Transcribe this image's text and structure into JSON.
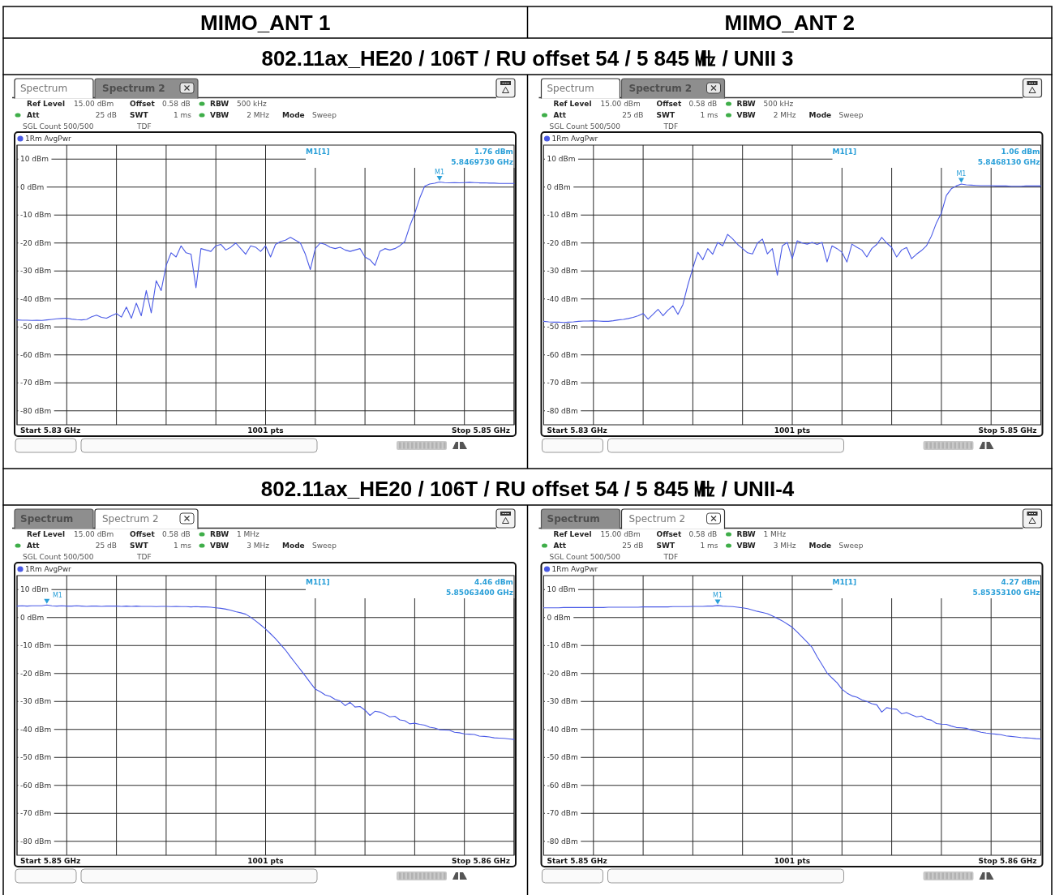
{
  "chart_data": [
    {
      "type": "other",
      "annotations": [
        "MIMO_ANT 1",
        "MIMO_ANT 2"
      ]
    },
    {
      "type": "other",
      "title": "802.11ax_HE20 / 106T / RU offset 54 / 5 845 ㎒ / UNII 3"
    },
    {
      "type": "line",
      "categories": [
        null,
        null,
        null,
        null,
        null,
        null,
        null,
        null,
        null,
        null,
        null,
        null,
        null,
        null,
        null,
        null,
        null,
        null,
        null,
        null,
        null,
        null,
        null,
        null,
        null,
        null,
        null,
        null,
        null,
        null,
        null,
        null,
        null,
        null,
        null,
        null,
        null,
        null,
        null,
        null,
        null,
        null,
        null,
        null,
        null,
        null,
        null,
        null,
        null,
        null,
        null,
        null,
        null,
        null,
        null,
        null,
        null,
        null,
        null,
        null,
        null,
        null,
        null,
        null,
        null,
        null,
        null,
        null,
        null,
        null,
        null,
        null,
        null,
        null,
        null,
        null,
        null,
        null,
        null,
        null,
        null,
        null,
        null,
        null,
        null,
        null,
        null,
        null,
        null,
        null,
        null,
        null,
        null,
        null,
        null,
        null,
        null,
        null,
        null,
        null,
        null
      ],
      "series": [
        {
          "name": "1Rm AvgPwr",
          "color": "#4a5ae6",
          "values": [
            -47.5,
            -47.6,
            -47.6,
            -47.7,
            -47.6,
            -47.7,
            -47.5,
            -47.3,
            -47.1,
            -47,
            -46.9,
            -47.2,
            -47.4,
            -47.5,
            -47.3,
            -46.4,
            -45.8,
            -46.6,
            -46.9,
            -46,
            -45.2,
            -46.5,
            -42.9,
            -46.9,
            -41.5,
            -46,
            -37,
            -45,
            -33.5,
            -37,
            -28,
            -23.5,
            -25,
            -21,
            -23.5,
            -24,
            -36,
            -22,
            -22.5,
            -23,
            -21,
            -20.5,
            -22.5,
            -21.5,
            -20,
            -22,
            -24,
            -21,
            -21.5,
            -23,
            -21,
            -25,
            -20.5,
            -19.5,
            -19,
            -18,
            -19,
            -20,
            -24,
            -29.5,
            -22,
            -20,
            -20.5,
            -21.5,
            -22,
            -21.5,
            -22.5,
            -23,
            -22.5,
            -22,
            -25,
            -26,
            -28,
            -23,
            -22,
            -22.5,
            -22,
            -21,
            -19.5,
            -14,
            -9.5,
            -4,
            0.3,
            1.1,
            1.4,
            1.8,
            1.6,
            1.5,
            1.6,
            1.5,
            1.6,
            1.7,
            1.6,
            1.5,
            1.5,
            1.4,
            1.4,
            1.3,
            1.3,
            1.3,
            1.3
          ]
        }
      ],
      "xlabel": "1001 pts",
      "ylim": [
        -85,
        15
      ],
      "yticks": [
        {
          "value": 10,
          "label": "10 dBm"
        },
        {
          "value": 0,
          "label": "0 dBm"
        },
        {
          "value": -10,
          "label": "-10 dBm"
        },
        {
          "value": -20,
          "label": "-20 dBm"
        },
        {
          "value": -30,
          "label": "-30 dBm"
        },
        {
          "value": -40,
          "label": "-40 dBm"
        },
        {
          "value": -50,
          "label": "-50 dBm"
        },
        {
          "value": -60,
          "label": "-60 dBm"
        },
        {
          "value": -70,
          "label": "-70 dBm"
        },
        {
          "value": -80,
          "label": "-80 dBm"
        }
      ],
      "grid": true,
      "legend": "top left",
      "line_style": "solid",
      "annotations": [
        "Spectrum",
        "Spectrum 2",
        "Ref Level",
        "15.00 dBm",
        "Offset",
        "0.58 dB",
        "RBW",
        "500 kHz",
        "Att",
        "25 dB",
        "SWT",
        "1 ms",
        "VBW",
        "2 MHz",
        "Mode",
        "Sweep",
        "SGL Count 500/500",
        "TDF",
        "M1[1]",
        "1.76 dBm",
        "5.8469730 GHz",
        "Start 5.83 GHz",
        "Stop 5.85 GHz",
        "M1"
      ]
    },
    {
      "type": "line",
      "categories": [
        null,
        null,
        null,
        null,
        null,
        null,
        null,
        null,
        null,
        null,
        null,
        null,
        null,
        null,
        null,
        null,
        null,
        null,
        null,
        null,
        null,
        null,
        null,
        null,
        null,
        null,
        null,
        null,
        null,
        null,
        null,
        null,
        null,
        null,
        null,
        null,
        null,
        null,
        null,
        null,
        null,
        null,
        null,
        null,
        null,
        null,
        null,
        null,
        null,
        null,
        null,
        null,
        null,
        null,
        null,
        null,
        null,
        null,
        null,
        null,
        null,
        null,
        null,
        null,
        null,
        null,
        null,
        null,
        null,
        null,
        null,
        null,
        null,
        null,
        null,
        null,
        null,
        null,
        null,
        null,
        null,
        null,
        null,
        null,
        null,
        null,
        null,
        null,
        null,
        null,
        null,
        null,
        null,
        null,
        null,
        null,
        null,
        null,
        null,
        null,
        null
      ],
      "series": [
        {
          "name": "1Rm AvgPwr",
          "color": "#4a5ae6",
          "values": [
            -48,
            -48.2,
            -48.3,
            -48.3,
            -48.4,
            -48.3,
            -48.2,
            -48,
            -47.9,
            -47.9,
            -47.8,
            -47.9,
            -48,
            -48,
            -47.8,
            -47.5,
            -47.3,
            -47,
            -46.6,
            -46,
            -45.2,
            -47.2,
            -45.5,
            -43.7,
            -46,
            -44,
            -42.5,
            -45.5,
            -42,
            -35,
            -29,
            -23.3,
            -26,
            -22,
            -24,
            -19.8,
            -21,
            -16.9,
            -18.5,
            -20.5,
            -22,
            -23.5,
            -23.9,
            -20,
            -18.6,
            -23.9,
            -22,
            -31.5,
            -21,
            -19.8,
            -25.6,
            -19.2,
            -20,
            -20.4,
            -19.8,
            -20.5,
            -19.8,
            -26.8,
            -21,
            -22,
            -23.3,
            -26.8,
            -20.4,
            -21.5,
            -22.5,
            -25,
            -22,
            -20.5,
            -18,
            -20,
            -21.6,
            -25,
            -22.5,
            -21.6,
            -25.6,
            -24,
            -22.7,
            -21,
            -17.5,
            -12.8,
            -9.3,
            -3,
            -0.6,
            0.4,
            1.1,
            0.8,
            0.7,
            0.6,
            0.5,
            0.5,
            0.5,
            0.4,
            0.4,
            0.4,
            0.3,
            0.3,
            0.3,
            0.4,
            0.4,
            0.4,
            0.4
          ]
        }
      ],
      "xlabel": "1001 pts",
      "ylim": [
        -85,
        15
      ],
      "yticks": [
        {
          "value": 10,
          "label": "10 dBm"
        },
        {
          "value": 0,
          "label": "0 dBm"
        },
        {
          "value": -10,
          "label": "-10 dBm"
        },
        {
          "value": -20,
          "label": "-20 dBm"
        },
        {
          "value": -30,
          "label": "-30 dBm"
        },
        {
          "value": -40,
          "label": "-40 dBm"
        },
        {
          "value": -50,
          "label": "-50 dBm"
        },
        {
          "value": -60,
          "label": "-60 dBm"
        },
        {
          "value": -70,
          "label": "-70 dBm"
        },
        {
          "value": -80,
          "label": "-80 dBm"
        }
      ],
      "grid": true,
      "legend": "top left",
      "line_style": "solid",
      "annotations": [
        "Spectrum",
        "Spectrum 2",
        "Ref Level",
        "15.00 dBm",
        "Offset",
        "0.58 dB",
        "RBW",
        "500 kHz",
        "Att",
        "25 dB",
        "SWT",
        "1 ms",
        "VBW",
        "2 MHz",
        "Mode",
        "Sweep",
        "SGL Count 500/500",
        "TDF",
        "M1[1]",
        "1.06 dBm",
        "5.8468130 GHz",
        "Start 5.83 GHz",
        "Stop 5.85 GHz",
        "M1"
      ]
    },
    {
      "type": "other",
      "title": "802.11ax_HE20 / 106T / RU offset 54 / 5 845 ㎒ / UNII-4"
    },
    {
      "type": "line",
      "categories": [
        null,
        null,
        null,
        null,
        null,
        null,
        null,
        null,
        null,
        null,
        null,
        null,
        null,
        null,
        null,
        null,
        null,
        null,
        null,
        null,
        null,
        null,
        null,
        null,
        null,
        null,
        null,
        null,
        null,
        null,
        null,
        null,
        null,
        null,
        null,
        null,
        null,
        null,
        null,
        null,
        null,
        null,
        null,
        null,
        null,
        null,
        null,
        null,
        null,
        null,
        null,
        null,
        null,
        null,
        null,
        null,
        null,
        null,
        null,
        null,
        null,
        null,
        null,
        null,
        null,
        null,
        null,
        null,
        null,
        null,
        null,
        null,
        null,
        null,
        null,
        null,
        null,
        null,
        null,
        null,
        null,
        null,
        null,
        null,
        null,
        null,
        null,
        null,
        null,
        null,
        null,
        null,
        null,
        null,
        null,
        null,
        null,
        null,
        null,
        null,
        null
      ],
      "series": [
        {
          "name": "1Rm AvgPwr",
          "color": "#4a5ae6",
          "values": [
            4.1,
            4.2,
            4.1,
            4.2,
            4.2,
            4.2,
            4.5,
            4.2,
            4.1,
            4.2,
            4.1,
            4.1,
            4.2,
            4.1,
            4,
            4.1,
            4.1,
            4,
            4.1,
            4.1,
            4.1,
            4,
            4.1,
            4,
            4.1,
            4,
            4,
            4,
            3.9,
            4,
            4,
            3.9,
            4,
            3.9,
            3.9,
            3.8,
            3.9,
            3.8,
            3.8,
            3.7,
            3.5,
            3.3,
            3,
            2.6,
            2.1,
            1.7,
            1.2,
            0.1,
            -1.2,
            -2.6,
            -4.1,
            -5.8,
            -7.6,
            -9.6,
            -11.6,
            -14,
            -16.3,
            -18.6,
            -20.9,
            -23.3,
            -25.6,
            -26.5,
            -27.7,
            -28.2,
            -29.3,
            -29.8,
            -31.5,
            -30.3,
            -32,
            -31.8,
            -33.1,
            -35,
            -33.5,
            -33.8,
            -34.6,
            -35.5,
            -35.3,
            -36.6,
            -36.9,
            -38,
            -37.8,
            -38.2,
            -38.5,
            -39.2,
            -39.5,
            -40.1,
            -40.2,
            -40.3,
            -41,
            -41.2,
            -41.6,
            -41.7,
            -41.8,
            -42.4,
            -42.5,
            -42.7,
            -43,
            -43.1,
            -43.2,
            -43.4,
            -43.6
          ]
        }
      ],
      "xlabel": "1001 pts",
      "ylim": [
        -85,
        15
      ],
      "yticks": [
        {
          "value": 10,
          "label": "10 dBm"
        },
        {
          "value": 0,
          "label": "0 dBm"
        },
        {
          "value": -10,
          "label": "-10 dBm"
        },
        {
          "value": -20,
          "label": "-20 dBm"
        },
        {
          "value": -30,
          "label": "-30 dBm"
        },
        {
          "value": -40,
          "label": "-40 dBm"
        },
        {
          "value": -50,
          "label": "-50 dBm"
        },
        {
          "value": -60,
          "label": "-60 dBm"
        },
        {
          "value": -70,
          "label": "-70 dBm"
        },
        {
          "value": -80,
          "label": "-80 dBm"
        }
      ],
      "grid": true,
      "legend": "top left",
      "line_style": "solid",
      "annotations": [
        "Spectrum",
        "Spectrum 2",
        "Ref Level",
        "15.00 dBm",
        "Offset",
        "0.58 dB",
        "RBW",
        "1 MHz",
        "Att",
        "25 dB",
        "SWT",
        "1 ms",
        "VBW",
        "3 MHz",
        "Mode",
        "Sweep",
        "SGL Count 500/500",
        "TDF",
        "M1[1]",
        "4.46 dBm",
        "5.85063400 GHz",
        "Start 5.85 GHz",
        "Stop 5.86 GHz",
        "M1"
      ]
    },
    {
      "type": "line",
      "categories": [
        null,
        null,
        null,
        null,
        null,
        null,
        null,
        null,
        null,
        null,
        null,
        null,
        null,
        null,
        null,
        null,
        null,
        null,
        null,
        null,
        null,
        null,
        null,
        null,
        null,
        null,
        null,
        null,
        null,
        null,
        null,
        null,
        null,
        null,
        null,
        null,
        null,
        null,
        null,
        null,
        null,
        null,
        null,
        null,
        null,
        null,
        null,
        null,
        null,
        null,
        null,
        null,
        null,
        null,
        null,
        null,
        null,
        null,
        null,
        null,
        null,
        null,
        null,
        null,
        null,
        null,
        null,
        null,
        null,
        null,
        null,
        null,
        null,
        null,
        null,
        null,
        null,
        null,
        null,
        null,
        null,
        null,
        null,
        null,
        null,
        null,
        null,
        null,
        null,
        null,
        null,
        null,
        null,
        null,
        null,
        null,
        null,
        null,
        null,
        null,
        null
      ],
      "series": [
        {
          "name": "1Rm AvgPwr",
          "color": "#4a5ae6",
          "values": [
            3.5,
            3.5,
            3.5,
            3.5,
            3.6,
            3.6,
            3.6,
            3.6,
            3.6,
            3.6,
            3.6,
            3.6,
            3.6,
            3.7,
            3.7,
            3.7,
            3.7,
            3.7,
            3.7,
            3.7,
            3.8,
            3.8,
            3.8,
            3.8,
            3.8,
            3.8,
            3.9,
            3.9,
            3.9,
            3.9,
            4,
            4,
            4,
            4.1,
            4.1,
            4.3,
            4.1,
            4,
            3.9,
            3.7,
            3.5,
            3.2,
            2.7,
            2.2,
            1.8,
            1.4,
            0.6,
            -0.3,
            -1.2,
            -2.3,
            -3.5,
            -5.2,
            -7,
            -8.8,
            -10.7,
            -14,
            -16.9,
            -19.8,
            -21.6,
            -23.3,
            -25.6,
            -27,
            -28,
            -28.5,
            -29.4,
            -30,
            -30.8,
            -31.2,
            -33.8,
            -32.2,
            -32.6,
            -32.8,
            -34.4,
            -34,
            -34.8,
            -35.5,
            -35.2,
            -36.3,
            -36.7,
            -37.9,
            -38.1,
            -38.2,
            -38.8,
            -39.3,
            -39.4,
            -39.6,
            -40.2,
            -40.6,
            -41,
            -41.3,
            -41.5,
            -41.7,
            -41.9,
            -42.3,
            -42.5,
            -42.7,
            -42.9,
            -43,
            -43.1,
            -43.3,
            -43.4
          ]
        }
      ],
      "xlabel": "1001 pts",
      "ylim": [
        -85,
        15
      ],
      "yticks": [
        {
          "value": 10,
          "label": "10 dBm"
        },
        {
          "value": 0,
          "label": "0 dBm"
        },
        {
          "value": -10,
          "label": "-10 dBm"
        },
        {
          "value": -20,
          "label": "-20 dBm"
        },
        {
          "value": -30,
          "label": "-30 dBm"
        },
        {
          "value": -40,
          "label": "-40 dBm"
        },
        {
          "value": -50,
          "label": "-50 dBm"
        },
        {
          "value": -60,
          "label": "-60 dBm"
        },
        {
          "value": -70,
          "label": "-70 dBm"
        },
        {
          "value": -80,
          "label": "-80 dBm"
        }
      ],
      "grid": true,
      "legend": "top left",
      "line_style": "solid",
      "annotations": [
        "Spectrum",
        "Spectrum 2",
        "Ref Level",
        "15.00 dBm",
        "Offset",
        "0.58 dB",
        "RBW",
        "1 MHz",
        "Att",
        "25 dB",
        "SWT",
        "1 ms",
        "VBW",
        "3 MHz",
        "Mode",
        "Sweep",
        "SGL Count 500/500",
        "TDF",
        "M1[1]",
        "4.27 dBm",
        "5.85353100 GHz",
        "Start 5.85 GHz",
        "Stop 5.86 GHz",
        "M1"
      ]
    }
  ]
}
